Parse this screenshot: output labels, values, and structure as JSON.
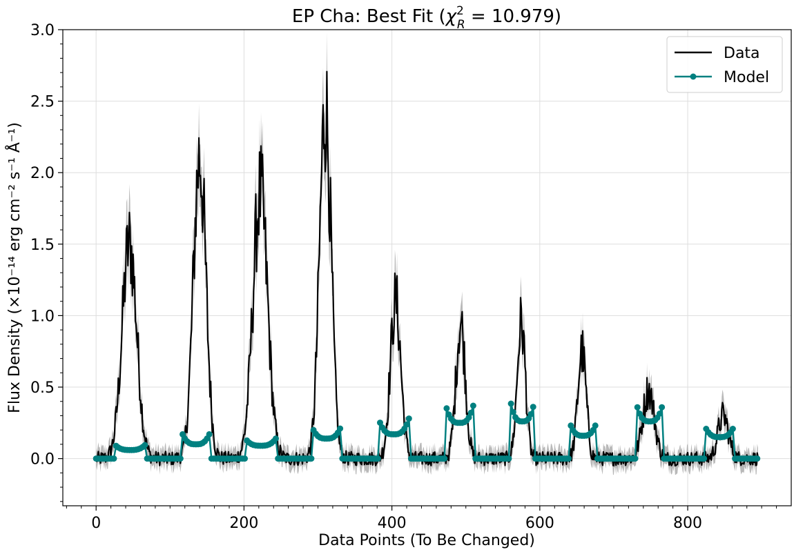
{
  "chart_data": {
    "type": "line",
    "title_prefix": "EP Cha: Best Fit (",
    "title_chi": "χ",
    "title_sup": "2",
    "title_sub": "R",
    "title_suffix": " = 10.979)",
    "xlabel": "Data Points (To Be Changed)",
    "ylabel": "Flux Density (×10⁻¹⁴ erg cm⁻² s⁻¹ Å⁻¹)",
    "xlim": [
      -45,
      940
    ],
    "ylim": [
      -0.33,
      3.0
    ],
    "xticks": [
      0,
      200,
      400,
      600,
      800
    ],
    "xtick_labels": [
      "0",
      "200",
      "400",
      "600",
      "800"
    ],
    "yticks": [
      0.0,
      0.5,
      1.0,
      1.5,
      2.0,
      2.5,
      3.0
    ],
    "ytick_labels": [
      "0.0",
      "0.5",
      "1.0",
      "1.5",
      "2.0",
      "2.5",
      "3.0"
    ],
    "grid": true,
    "legend_position": "top-right",
    "series": [
      {
        "name": "Data",
        "color": "#000000",
        "marker": "none",
        "x_range": [
          0,
          895
        ],
        "segments": [
          {
            "center": 45,
            "peak": 1.5,
            "width": 14
          },
          {
            "center": 140,
            "peak": 2.1,
            "width": 12
          },
          {
            "center": 222,
            "peak": 1.85,
            "width": 14
          },
          {
            "center": 310,
            "peak": 2.45,
            "width": 11
          },
          {
            "center": 405,
            "peak": 1.1,
            "width": 10
          },
          {
            "center": 493,
            "peak": 0.95,
            "width": 9
          },
          {
            "center": 575,
            "peak": 0.95,
            "width": 8
          },
          {
            "center": 657,
            "peak": 0.75,
            "width": 8
          },
          {
            "center": 747,
            "peak": 0.48,
            "width": 11
          },
          {
            "center": 848,
            "peak": 0.3,
            "width": 10
          }
        ]
      },
      {
        "name": "Model",
        "color": "#008080",
        "marker": "circle",
        "x_range": [
          0,
          895
        ],
        "segments": [
          {
            "start": 25,
            "end": 67,
            "edge": 0.1,
            "mid": 0.06
          },
          {
            "start": 117,
            "end": 153,
            "edge": 0.17,
            "mid": 0.1
          },
          {
            "start": 202,
            "end": 243,
            "edge": 0.14,
            "mid": 0.09
          },
          {
            "start": 293,
            "end": 330,
            "edge": 0.21,
            "mid": 0.14
          },
          {
            "start": 382,
            "end": 423,
            "edge": 0.28,
            "mid": 0.17
          },
          {
            "start": 473,
            "end": 510,
            "edge": 0.37,
            "mid": 0.25
          },
          {
            "start": 560,
            "end": 593,
            "edge": 0.41,
            "mid": 0.26
          },
          {
            "start": 640,
            "end": 677,
            "edge": 0.26,
            "mid": 0.16
          },
          {
            "start": 730,
            "end": 767,
            "edge": 0.4,
            "mid": 0.26
          },
          {
            "start": 823,
            "end": 863,
            "edge": 0.23,
            "mid": 0.15
          }
        ]
      }
    ]
  }
}
